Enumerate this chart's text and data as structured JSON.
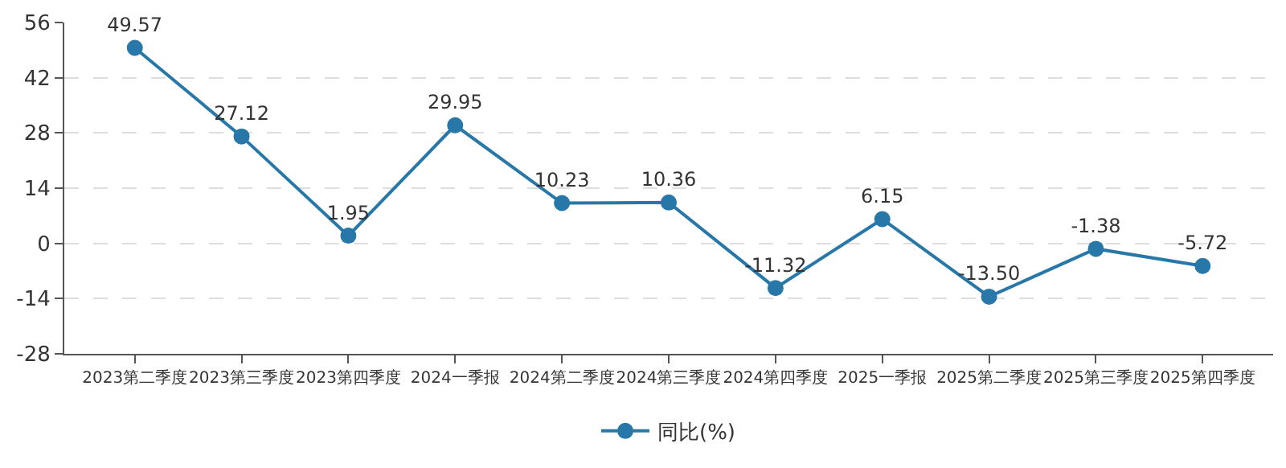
{
  "chart_data": {
    "type": "line",
    "categories": [
      "2023第二季度",
      "2023第三季度",
      "2023第四季度",
      "2024一季报",
      "2024第二季度",
      "2024第三季度",
      "2024第四季度",
      "2025一季报",
      "2025第二季度",
      "2025第三季度",
      "2025第四季度"
    ],
    "series": [
      {
        "name": "同比(%)",
        "color": "#2778a8",
        "values": [
          49.57,
          27.12,
          1.95,
          29.95,
          10.23,
          10.36,
          -11.32,
          6.15,
          -13.5,
          -1.38,
          -5.72
        ]
      }
    ],
    "value_labels": [
      "49.57",
      "27.12",
      "1.95",
      "29.95",
      "10.23",
      "10.36",
      "-11.32",
      "6.15",
      "-13.50",
      "-1.38",
      "-5.72"
    ],
    "ylim": [
      -28,
      56
    ],
    "yticks": [
      -28,
      -14,
      0,
      14,
      28,
      42,
      56
    ],
    "grid": "y",
    "legend": "bottom",
    "marker": "circle",
    "line_style": "solid"
  }
}
